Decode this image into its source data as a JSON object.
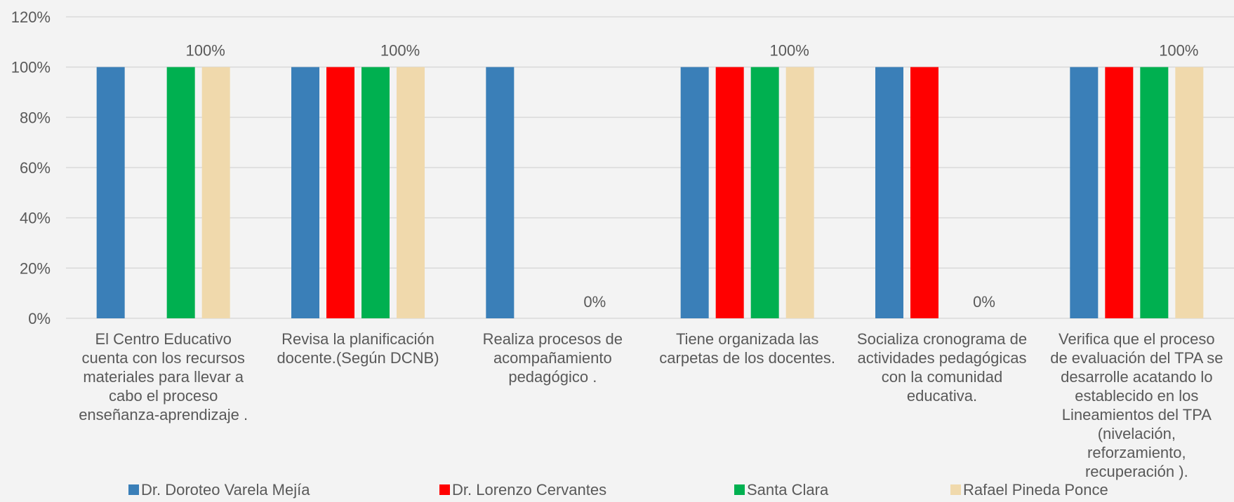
{
  "chart_data": {
    "type": "bar",
    "title": "",
    "xlabel": "",
    "ylabel": "",
    "ylim": [
      0,
      1.2
    ],
    "yticks": [
      0,
      0.2,
      0.4,
      0.6,
      0.8,
      1.0,
      1.2
    ],
    "ytick_labels": [
      "0%",
      "20%",
      "40%",
      "60%",
      "80%",
      "100%",
      "120%"
    ],
    "grid": true,
    "legend": "bottom",
    "categories": [
      [
        "El Centro Educativo",
        "cuenta con los recursos",
        "materiales para llevar a",
        "cabo el proceso",
        "enseñanza-aprendizaje ."
      ],
      [
        "Revisa la planificación",
        "docente.(Según DCNB)"
      ],
      [
        "Realiza procesos de",
        "acompañamiento",
        "pedagógico ."
      ],
      [
        "Tiene organizada las",
        "carpetas de los docentes."
      ],
      [
        "Socializa cronograma de",
        "actividades pedagógicas",
        "con la comunidad",
        "educativa."
      ],
      [
        "Verifica que el proceso",
        "de evaluación del TPA se",
        "desarrolle acatando lo",
        "establecido en los",
        "Lineamientos del TPA",
        "(nivelación,",
        "reforzamiento,",
        "recuperación )."
      ]
    ],
    "series": [
      {
        "name": "Dr. Doroteo Varela Mejía",
        "color": "#3a7fb8",
        "values": [
          1,
          1,
          1,
          1,
          1,
          1
        ]
      },
      {
        "name": "Dr. Lorenzo Cervantes",
        "color": "#ff0000",
        "values": [
          0,
          1,
          0,
          1,
          1,
          1
        ]
      },
      {
        "name": "Santa Clara",
        "color": "#00b050",
        "values": [
          1,
          1,
          0,
          1,
          0,
          1
        ]
      },
      {
        "name": "Rafael Pineda Ponce",
        "color": "#f0d9ac",
        "values": [
          1,
          1,
          0,
          1,
          0,
          1
        ]
      }
    ],
    "data_labels": [
      "100%",
      "100%",
      "0%",
      "100%",
      "0%",
      "100%"
    ],
    "gridline_color": "#d9d9d9"
  }
}
